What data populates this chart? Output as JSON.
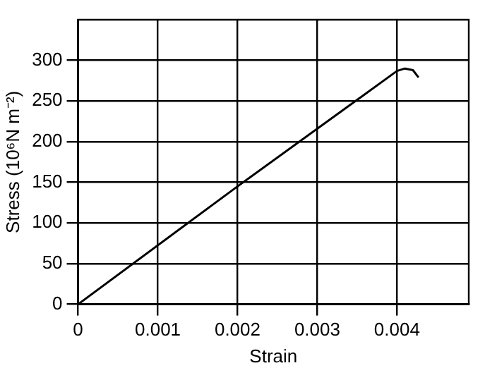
{
  "chart_data": {
    "type": "line",
    "xlabel": "Strain",
    "ylabel": "Stress (10⁶N m⁻²)",
    "x": [
      0,
      0.002,
      0.004,
      0.0041,
      0.0042,
      0.00427
    ],
    "series": [
      {
        "color": "#000000",
        "values": [
          0,
          145,
          287,
          290,
          288,
          279
        ]
      }
    ],
    "xlim": [
      0,
      0.0049
    ],
    "xticks": [
      0,
      0.001,
      0.002,
      0.003,
      0.004
    ],
    "ylim": [
      0,
      350
    ],
    "yticks": [
      0,
      50,
      100,
      150,
      200,
      250,
      300
    ],
    "grid": true,
    "legend": false,
    "marker": "none",
    "line_style": "solid"
  }
}
